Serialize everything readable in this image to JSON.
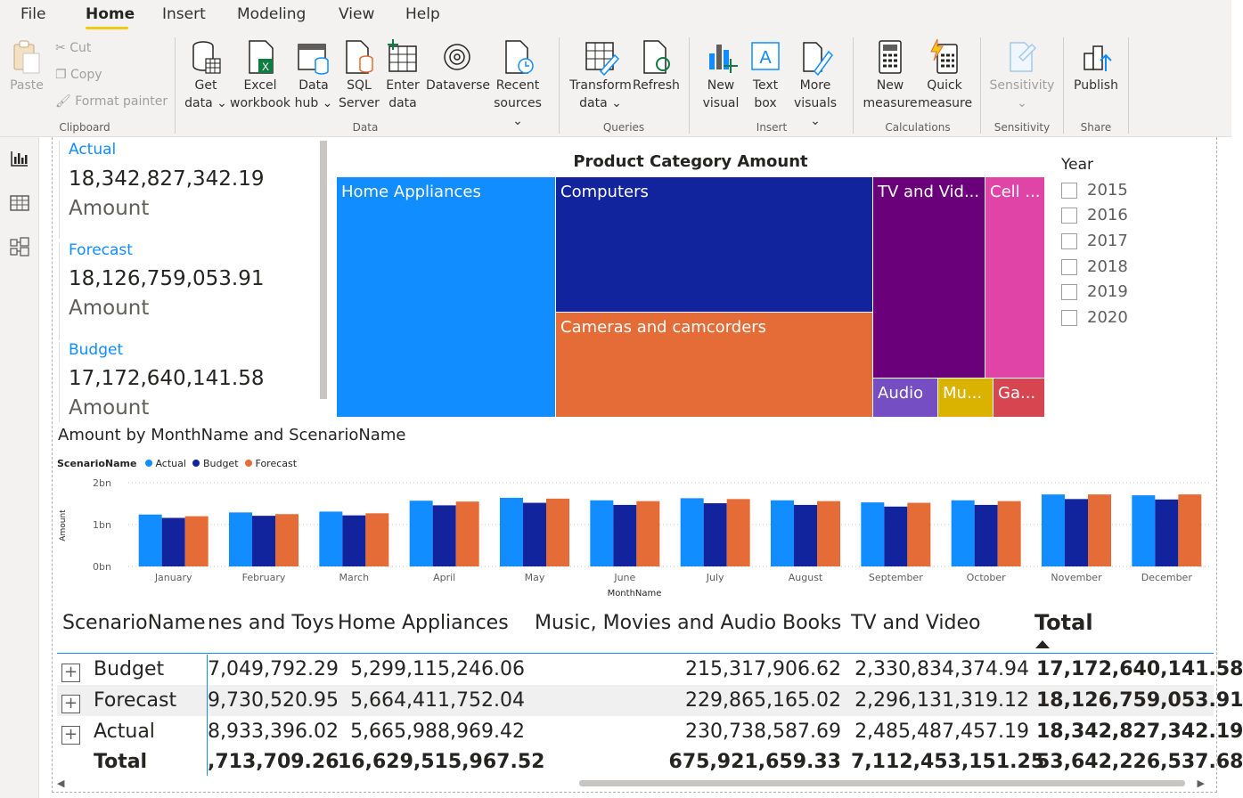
{
  "menu": {
    "items": [
      "File",
      "Home",
      "Insert",
      "Modeling",
      "View",
      "Help"
    ],
    "active": "Home"
  },
  "ribbon": {
    "clipboard": {
      "paste": "Paste",
      "cut": "Cut",
      "copy": "Copy",
      "format_painter": "Format painter",
      "group": "Clipboard"
    },
    "data": {
      "get_data_1": "Get",
      "get_data_2": "data",
      "excel_1": "Excel",
      "excel_2": "workbook",
      "hub_1": "Data",
      "hub_2": "hub",
      "sql_1": "SQL",
      "sql_2": "Server",
      "enter_1": "Enter",
      "enter_2": "data",
      "dataverse": "Dataverse",
      "recent_1": "Recent",
      "recent_2": "sources",
      "group": "Data"
    },
    "queries": {
      "transform_1": "Transform",
      "transform_2": "data",
      "refresh": "Refresh",
      "group": "Queries"
    },
    "insert": {
      "new_visual_1": "New",
      "new_visual_2": "visual",
      "text_box_1": "Text",
      "text_box_2": "box",
      "more_visuals_1": "More",
      "more_visuals_2": "visuals",
      "group": "Insert"
    },
    "calculations": {
      "new_measure_1": "New",
      "new_measure_2": "measure",
      "quick_measure_1": "Quick",
      "quick_measure_2": "measure",
      "group": "Calculations"
    },
    "sensitivity": {
      "label": "Sensitivity",
      "group": "Sensitivity"
    },
    "share": {
      "publish": "Publish",
      "group": "Share"
    }
  },
  "cards": [
    {
      "title": "Actual",
      "value": "18,342,827,342.19",
      "unit": "Amount"
    },
    {
      "title": "Forecast",
      "value": "18,126,759,053.91",
      "unit": "Amount"
    },
    {
      "title": "Budget",
      "value": "17,172,640,141.58",
      "unit": "Amount"
    }
  ],
  "treemap": {
    "title": "Product Category Amount",
    "tiles": [
      {
        "label": "Home Appliances",
        "color": "#118dff"
      },
      {
        "label": "Computers",
        "color": "#12239e"
      },
      {
        "label": "Cameras and camcorders",
        "color": "#e66c37"
      },
      {
        "label": "TV and Vid...",
        "color": "#6b007b"
      },
      {
        "label": "Cell ...",
        "color": "#e044a7"
      },
      {
        "label": "Audio",
        "color": "#744ec2"
      },
      {
        "label": "Mu...",
        "color": "#d9b300"
      },
      {
        "label": "Ga...",
        "color": "#d64550"
      }
    ]
  },
  "slicer": {
    "title": "Year",
    "items": [
      "2015",
      "2016",
      "2017",
      "2018",
      "2019",
      "2020"
    ]
  },
  "chart_data": {
    "type": "bar",
    "title": "Amount by MonthName and ScenarioName",
    "legend_title": "ScenarioName",
    "legend_position": "top-left",
    "xlabel": "MonthName",
    "ylabel": "Amount",
    "y_ticks": [
      "2bn",
      "1bn",
      "0bn"
    ],
    "ylim": [
      0,
      2000000000
    ],
    "categories": [
      "January",
      "February",
      "March",
      "April",
      "May",
      "June",
      "July",
      "August",
      "September",
      "October",
      "November",
      "December"
    ],
    "series": [
      {
        "name": "Actual",
        "color": "#118dff",
        "values": [
          1240000000,
          1290000000,
          1310000000,
          1570000000,
          1640000000,
          1580000000,
          1630000000,
          1580000000,
          1530000000,
          1580000000,
          1720000000,
          1700000000
        ]
      },
      {
        "name": "Budget",
        "color": "#12239e",
        "values": [
          1160000000,
          1210000000,
          1220000000,
          1460000000,
          1520000000,
          1470000000,
          1510000000,
          1470000000,
          1430000000,
          1470000000,
          1610000000,
          1600000000
        ]
      },
      {
        "name": "Forecast",
        "color": "#e66c37",
        "values": [
          1200000000,
          1250000000,
          1270000000,
          1550000000,
          1620000000,
          1560000000,
          1610000000,
          1560000000,
          1520000000,
          1560000000,
          1720000000,
          1720000000
        ]
      }
    ]
  },
  "matrix": {
    "headers": [
      "ScenarioName",
      "nes and Toys",
      "Home Appliances",
      "Music, Movies and Audio Books",
      "TV and Video",
      "Total"
    ],
    "rows": [
      {
        "label": "Budget",
        "cells": [
          "7,049,792.29",
          "5,299,115,246.06",
          "215,317,906.62",
          "2,330,834,374.94",
          "17,172,640,141.58"
        ]
      },
      {
        "label": "Forecast",
        "cells": [
          "9,730,520.95",
          "5,664,411,752.04",
          "229,865,165.02",
          "2,296,131,319.12",
          "18,126,759,053.91"
        ]
      },
      {
        "label": "Actual",
        "cells": [
          "8,933,396.02",
          "5,665,988,969.42",
          "230,738,587.69",
          "2,485,487,457.19",
          "18,342,827,342.19"
        ]
      }
    ],
    "total": {
      "label": "Total",
      "cells": [
        ",713,709.26",
        "16,629,515,967.52",
        "675,921,659.33",
        "7,112,453,151.25",
        "53,642,226,537.68"
      ]
    }
  }
}
